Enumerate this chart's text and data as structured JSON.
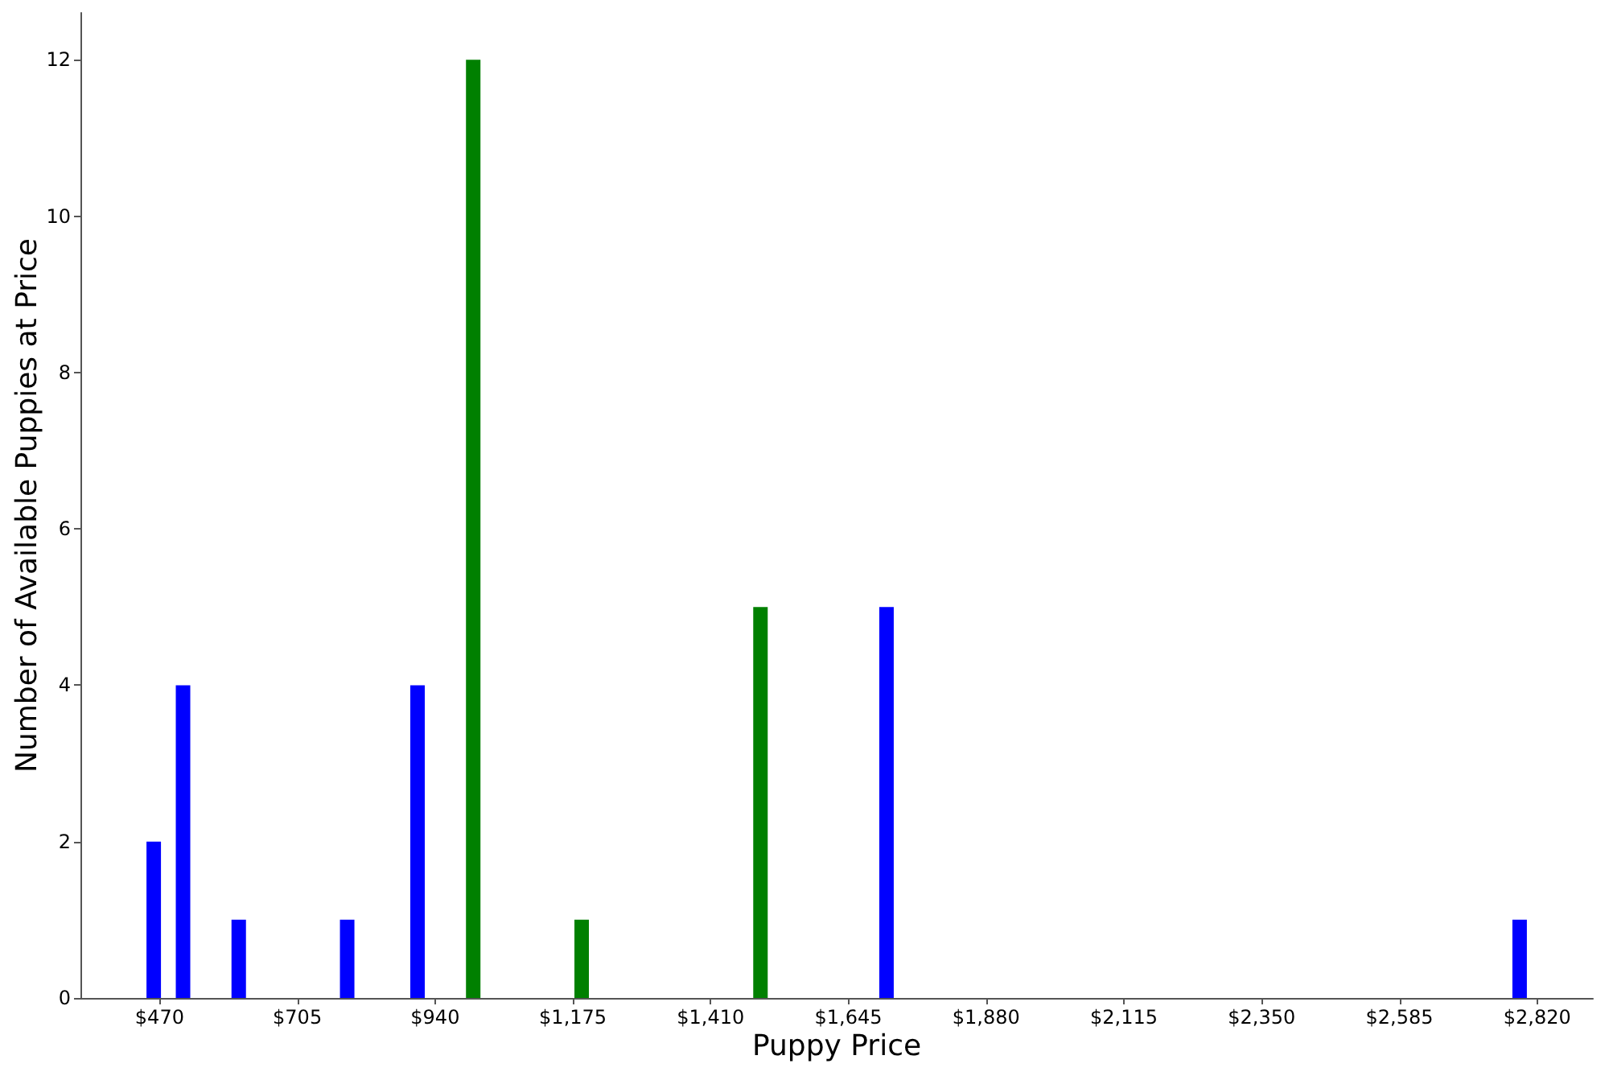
{
  "chart_data": {
    "type": "bar",
    "xlabel": "Puppy Price",
    "ylabel": "Number of Available Puppies at Price",
    "x": [
      460,
      510,
      605,
      790,
      910,
      1005,
      1190,
      1495,
      1710,
      2790
    ],
    "values": [
      2,
      4,
      1,
      1,
      4,
      12,
      1,
      5,
      5,
      1
    ],
    "colors": [
      "#0000ff",
      "#0000ff",
      "#0000ff",
      "#0000ff",
      "#0000ff",
      "#008000",
      "#008000",
      "#008000",
      "#0000ff",
      "#0000ff"
    ],
    "xlim": [
      335,
      2915
    ],
    "xticks": [
      {
        "value": 470,
        "label": "$470"
      },
      {
        "value": 705,
        "label": "$705"
      },
      {
        "value": 940,
        "label": "$940"
      },
      {
        "value": 1175,
        "label": "$1,175"
      },
      {
        "value": 1410,
        "label": "$1,410"
      },
      {
        "value": 1645,
        "label": "$1,645"
      },
      {
        "value": 1880,
        "label": "$1,880"
      },
      {
        "value": 2115,
        "label": "$2,115"
      },
      {
        "value": 2350,
        "label": "$2,350"
      },
      {
        "value": 2585,
        "label": "$2,585"
      },
      {
        "value": 2820,
        "label": "$2,820"
      }
    ],
    "ylim": [
      0,
      12.6
    ],
    "yticks": [
      0,
      2,
      4,
      6,
      8,
      10,
      12
    ]
  }
}
